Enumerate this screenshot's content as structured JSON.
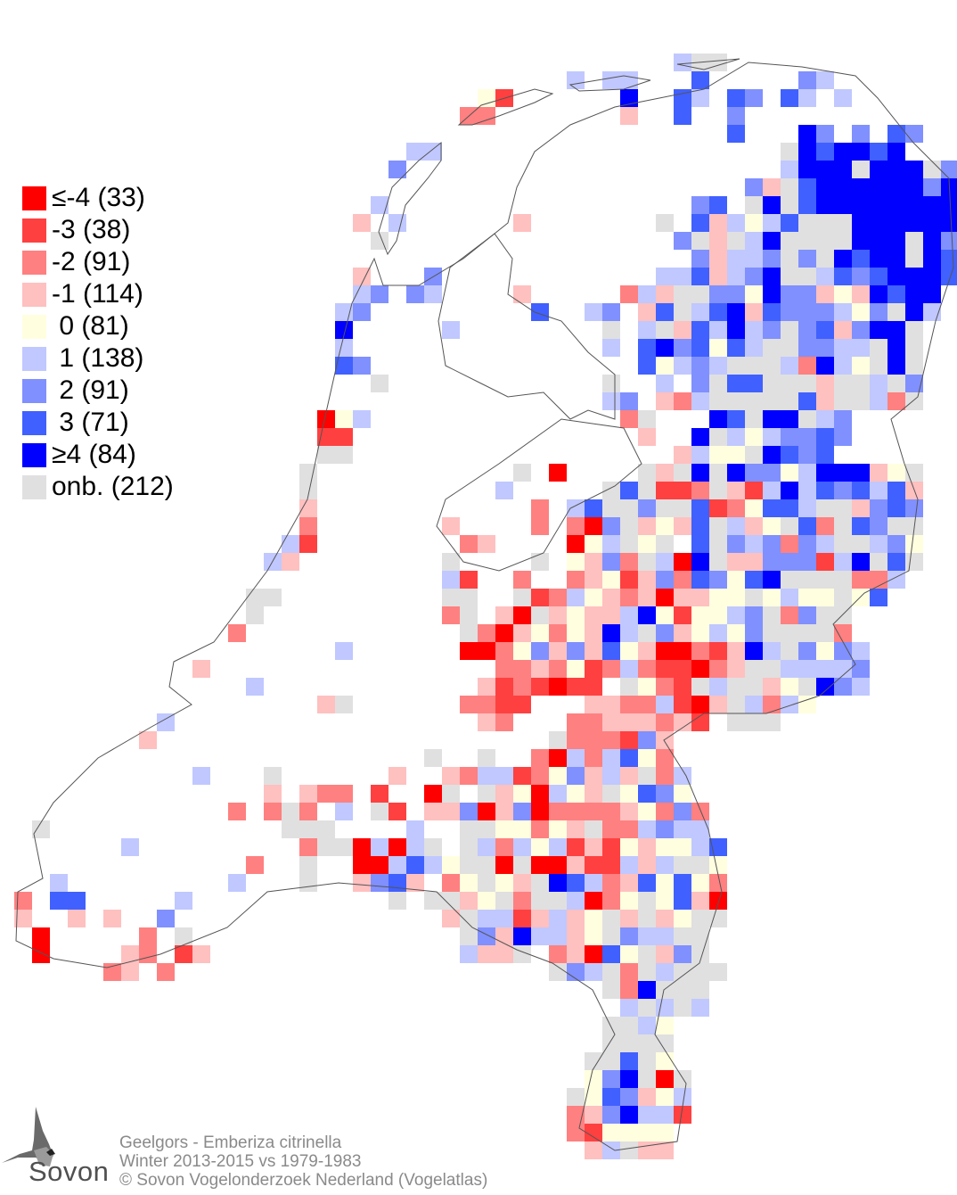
{
  "legend": [
    {
      "code": "A",
      "label": "≤-4 (33)",
      "color": "#ff0000"
    },
    {
      "code": "B",
      "label": "-3 (38)",
      "color": "#ff4040"
    },
    {
      "code": "C",
      "label": "-2 (91)",
      "color": "#ff8080"
    },
    {
      "code": "D",
      "label": "-1 (114)",
      "color": "#ffc0c0"
    },
    {
      "code": "E",
      "label": " 0 (81)",
      "color": "#ffffe0"
    },
    {
      "code": "F",
      "label": " 1 (138)",
      "color": "#c0c8ff"
    },
    {
      "code": "G",
      "label": " 2 (91)",
      "color": "#8090ff"
    },
    {
      "code": "H",
      "label": " 3 (71)",
      "color": "#4060ff"
    },
    {
      "code": "I",
      "label": "≥4 (84)",
      "color": "#0000ff"
    },
    {
      "code": "N",
      "label": "onb. (212)",
      "color": "#e0e0e0"
    }
  ],
  "footer": {
    "species": "Geelgors - Emberiza citrinella",
    "period": "Winter 2013-2015 vs 1979-1983",
    "copyright": "© Sovon Vogelonderzoek Nederland (Vogelatlas)"
  },
  "logo": {
    "text": "Sovon"
  },
  "map_data": {
    "grid_first_row": 3,
    "rows": [
      ".......... .......... .......... .......FNN .......... ...",
      ".......... .......... .......... .F.FF...H. ....GF.... ...",
      ".......... .......... ......EB.. ....I..HF. HG.HF.F... ...",
      ".......... .......... .....CC... ....D..H.. G......... ...",
      ".......... .......... .......... .......... H...IG.G.H G..",
      ".......... .......... ..FF...... .......... ...NIHIIHI ...",
      ".......... .......... .G........ .......... ...FIIINII ING",
      ".......... .......... .......... .......... .GDNHIIIII IGI",
      ".......... .......... F......... ........GH .NINHIIIII III",
      ".......... .........D .F......D. ......N.HD FEFHNNNIII III",
      ".......... .......... N......... .......GND NFINNNNIII NIG",
      ".......... .......... .......... ........GD FFGNGNIHII NIH",
      ".......... .........D ...G...... ......FFHD FGINNFHGHI IIH",
      ".......... .........F G.GF....D. ....CFDNNG GEIGGDEDIH II.",
      ".......... ........FG .........H ..FG.DHNFH IDHGGGFEGN IF.",
      ".......... ........I. ....F..... ...N.FNDHF IFGNGHDGII N..",
      ".......... ........F. .......... ...F.HIGHE HFNNGGFFNI N..",
      ".......... ........HG .......... .....HEFGF NNNFCIFENI N..",
      ".......... .......... N......... ...N..F.GN HHNNNDNNFN G..",
      ".......... .......... .......... ...FG.DCFN NNNNHDNNFC N..",
      ".......... .......AEF .......... ....CN...I HNIINFG... ...",
      ".......... .......BB. .......... .....D..IN FEFGGHG... ...",
      ".......... .......NN. .......... .......DFE ENIHGH.... ...",
      ".......... ......N... ........N. A....NDNIN IGGEFIIIDE N..",
      ".......... ......N... .......F.. ...NHNBBCN DBFIFHGHFH D..",
      ".......... ......D... .........C .FHNNGNNHB CEHHFNNDGH G..",
      ".......... ......C... ....D....C .CAGNDEDHN FDENHCNHGN N..",
      ".......... .....FB... .....CD... .AEFNEN.HN GFGCGFNNFG E..",
      ".......... ....FD.... ....N....N .EDGCNFAIN DDGGGBFINH N..",
      ".......... .......... ....FB..C. .CDEBDGCHG EHINNNNCCF ...",
      ".......... ...NN..... ....NN..NB CFEDCDADDE ENEFEENEH. ...",
      ".......... ...N...... ....CN.DAN DEDDFIEBEE FGNCGNN... ...",
      ".......... ..C....... .....NCADE CEDIFNGDEF EGNNNNC... ...",
      ".......... ........F. .....AACEG DGDHEDAACB DIFNGEGF.. ...",
      ".......... D......... .......CCD CEBCFCBBAC DNNFFFFG.. ...",
      ".......... ...F...... ......DBCB ABB.NECBNF NNDENIGF.. ...",
      ".......... .......DN. .....CCBB. ..DDCCFBAD NFCFE..... ...",
      "........F. .......... ......DC.. .CCDDDCDB. NNN....... ...",
      ".......D.. .......... .......... NCCCBGD... .......... ...",
      ".......... .......... ...N..N..C AFCFHEC... .......... ...",
      ".......... F...N..... .D..DCFFBC EGDFDNCF.. .......... ...",
      ".......... ....D.DCC. B..AN.NDEA FEDNEHGE.. .......... ...",
      ".......... ..C.CNC.F. NB.DDGADGA CCCCDECGC. .......... ...",
      ".N........ .....NNN.. ..F..NNEEC EDNCCFGFF. .......... ...",
      "......F... ......CNNA FAFN.NFCFE FBDBEDEEFH .......... ...",
      ".......... ...C..N..A AFHFENNANA ADBBFDFNNE .......... ...",
      "..F....... ..F...N..D GHD.CENEDN IHFCDHEHEC .......... ...",
      "C.HH.....F .......... .N.NNDENCN NFACENEHDA .......... ...",
      "D..D.D..G. .......... ....DNFFBD FDENDNDENN .......... ...",
      ".A.....C.N .......... .....NGDIF FDENGFFNN. .......... ...",
      ".A....DC.B D......... .....FDDN. CDAHENDGN. .......... ...",
      ".....CD.C. .......... .......... NGFNCNFNNN .......... ...",
      ".......... .......... .......... ...NCINNN. .......... ...",
      ".......... .......... .......... ....FNFNF. .......... ...",
      ".......... .......... .......... ...NNFE... .......... ...",
      ".......... .......... .......... ...NNNN... .......... ...",
      ".......... .......... .......... ..NNHNE... .......... ...",
      ".......... .......... .......... ..EGINAN.. .......... ...",
      ".......... .......... .......... .NEHGDEF.. .......... ...",
      ".......... .......... .......... .CDGIFFB.. .......... ...",
      ".......... .......... .......... .CBEEEE... .......... ...",
      ".......... .......... .......... ..DFNDD... .......... ..."
    ]
  }
}
